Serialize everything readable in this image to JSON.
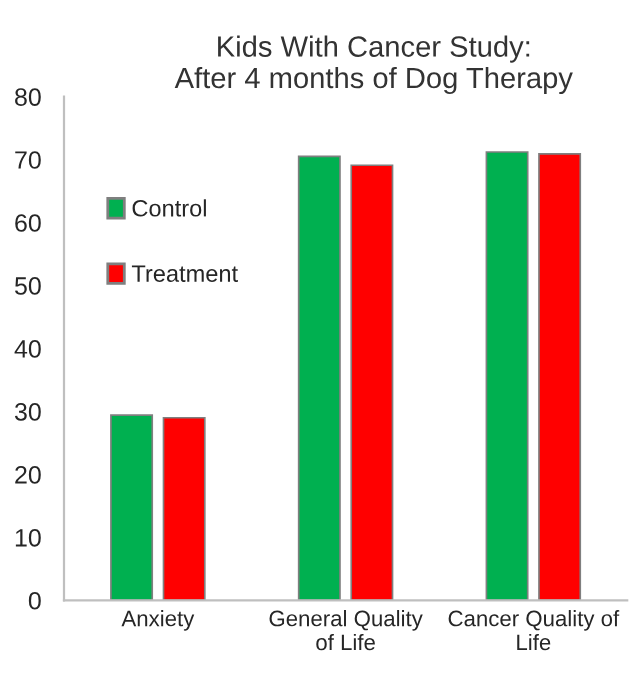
{
  "chart_data": {
    "type": "bar",
    "title": "Kids With Cancer Study:\nAfter 4 months of Dog Therapy",
    "categories": [
      "Anxiety",
      "General Quality\nof Life",
      "Cancer Quality of\nLife"
    ],
    "series": [
      {
        "name": "Control",
        "color": "#00b050",
        "values": [
          29.4,
          70.5,
          71.2
        ]
      },
      {
        "name": "Treatment",
        "color": "#ff0000",
        "values": [
          29.0,
          69.1,
          70.9
        ]
      }
    ],
    "ylim": [
      0,
      80
    ],
    "yticks": [
      0,
      10,
      20,
      30,
      40,
      50,
      60,
      70,
      80
    ],
    "grid": false,
    "legend": "top left"
  }
}
